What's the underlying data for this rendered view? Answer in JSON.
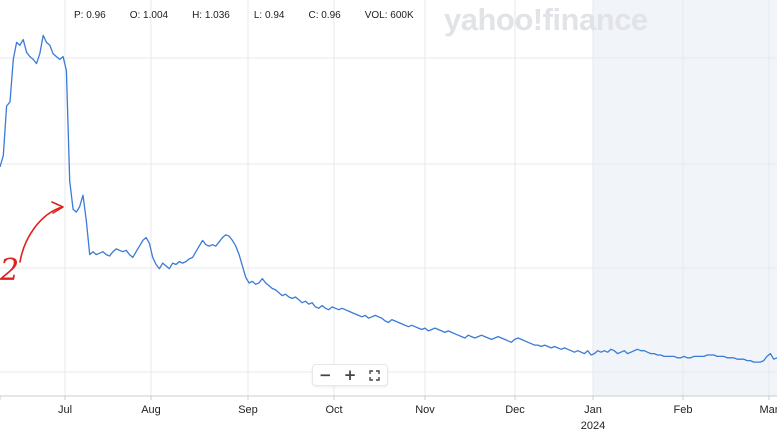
{
  "header": {
    "watermark": "yahoo!finance",
    "ohlc": [
      {
        "key": "P",
        "text": "P: 0.96"
      },
      {
        "key": "O",
        "text": "O: 1.004"
      },
      {
        "key": "H",
        "text": "H: 1.036"
      },
      {
        "key": "L",
        "text": "L: 0.94"
      },
      {
        "key": "C",
        "text": "C: 0.96"
      },
      {
        "key": "VOL",
        "text": "VOL: 600K"
      }
    ]
  },
  "annotation": {
    "text": "2",
    "color": "#e0211d"
  },
  "zoom_controls": {
    "minus_icon": "minus-icon",
    "plus_icon": "plus-icon",
    "fullscreen_icon": "fullscreen-icon"
  },
  "chart_data": {
    "type": "line",
    "line_color": "#3a7bd5",
    "grid": true,
    "x_ticks": [
      "Jul",
      "Aug",
      "Sep",
      "Oct",
      "Nov",
      "Dec",
      "Jan",
      "Feb",
      "Mar"
    ],
    "year_label": "2024",
    "highlight_from": "Jan",
    "series": [
      {
        "values": [
          1.62,
          1.7,
          2.05,
          2.08,
          2.38,
          2.5,
          2.48,
          2.52,
          2.43,
          2.4,
          2.38,
          2.35,
          2.42,
          2.55,
          2.5,
          2.48,
          2.42,
          2.4,
          2.38,
          2.4,
          2.3,
          1.52,
          1.32,
          1.3,
          1.34,
          1.42,
          1.24,
          1.0,
          1.02,
          1.0,
          1.01,
          1.02,
          1.0,
          0.99,
          1.02,
          1.04,
          1.03,
          1.02,
          1.03,
          1.0,
          0.98,
          1.02,
          1.06,
          1.1,
          1.12,
          1.08,
          0.98,
          0.93,
          0.9,
          0.94,
          0.92,
          0.9,
          0.94,
          0.93,
          0.95,
          0.94,
          0.95,
          0.97,
          0.98,
          1.02,
          1.06,
          1.1,
          1.07,
          1.06,
          1.07,
          1.06,
          1.09,
          1.12,
          1.14,
          1.13,
          1.1,
          1.06,
          1.0,
          0.92,
          0.84,
          0.8,
          0.81,
          0.79,
          0.8,
          0.83,
          0.8,
          0.78,
          0.76,
          0.75,
          0.73,
          0.71,
          0.72,
          0.7,
          0.69,
          0.7,
          0.68,
          0.66,
          0.67,
          0.65,
          0.66,
          0.63,
          0.62,
          0.64,
          0.62,
          0.61,
          0.63,
          0.62,
          0.61,
          0.62,
          0.61,
          0.6,
          0.59,
          0.58,
          0.57,
          0.56,
          0.57,
          0.55,
          0.56,
          0.57,
          0.56,
          0.55,
          0.53,
          0.52,
          0.54,
          0.53,
          0.52,
          0.51,
          0.5,
          0.49,
          0.5,
          0.49,
          0.48,
          0.47,
          0.48,
          0.46,
          0.47,
          0.48,
          0.47,
          0.46,
          0.45,
          0.46,
          0.45,
          0.44,
          0.43,
          0.42,
          0.41,
          0.43,
          0.42,
          0.41,
          0.42,
          0.43,
          0.42,
          0.41,
          0.4,
          0.41,
          0.42,
          0.41,
          0.4,
          0.39,
          0.38,
          0.4,
          0.41,
          0.4,
          0.39,
          0.38,
          0.37,
          0.36,
          0.36,
          0.35,
          0.36,
          0.35,
          0.34,
          0.35,
          0.34,
          0.33,
          0.34,
          0.33,
          0.32,
          0.31,
          0.32,
          0.31,
          0.3,
          0.32,
          0.29,
          0.3,
          0.32,
          0.31,
          0.32,
          0.31,
          0.33,
          0.32,
          0.3,
          0.31,
          0.32,
          0.3,
          0.31,
          0.32,
          0.33,
          0.32,
          0.32,
          0.31,
          0.3,
          0.3,
          0.29,
          0.29,
          0.28,
          0.28,
          0.28,
          0.28,
          0.27,
          0.27,
          0.28,
          0.27,
          0.27,
          0.28,
          0.28,
          0.28,
          0.28,
          0.29,
          0.29,
          0.29,
          0.28,
          0.28,
          0.28,
          0.27,
          0.27,
          0.27,
          0.26,
          0.26,
          0.26,
          0.25,
          0.25,
          0.24,
          0.24,
          0.24,
          0.25,
          0.28,
          0.3,
          0.26,
          0.27
        ]
      }
    ],
    "ylim": [
      0.0,
      2.8
    ]
  }
}
